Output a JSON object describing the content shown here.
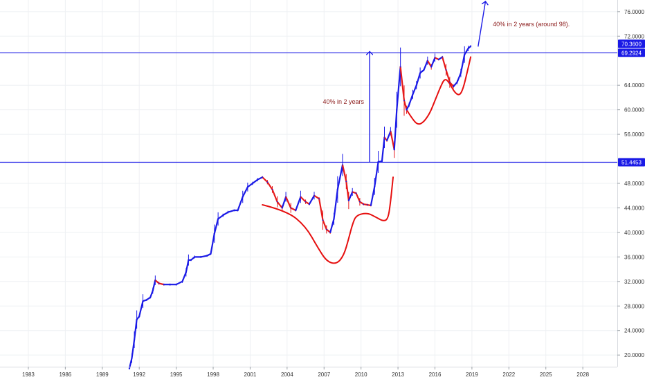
{
  "chart_data": {
    "type": "line",
    "title": "",
    "xlabel": "",
    "ylabel": "",
    "colors": {
      "up": "#1a1ae6",
      "down": "#e61a1a",
      "level": "#1a1ae6",
      "curve": "#e60f0f",
      "annotation_text": "#8b1a1a",
      "grid": "#eef0f3",
      "axis_text": "#333333",
      "badge_text": "#ffffff"
    },
    "xlim": [
      1980.7,
      2030.8
    ],
    "ylim": [
      18.1,
      77.9
    ],
    "x_ticks": [
      "1983",
      "1986",
      "1989",
      "1992",
      "1995",
      "1998",
      "2001",
      "2004",
      "2007",
      "2010",
      "2013",
      "2016",
      "2019",
      "2022",
      "2025",
      "2028"
    ],
    "y_ticks": [
      "20.0000",
      "24.0000",
      "28.0000",
      "32.0000",
      "36.0000",
      "40.0000",
      "44.0000",
      "48.0000",
      "56.0000",
      "60.0000",
      "64.0000",
      "72.0000",
      "76.0000"
    ],
    "price_series": {
      "name": "",
      "x": [
        1991.2,
        1991.4,
        1991.6,
        1991.8,
        1992.0,
        1992.3,
        1992.6,
        1992.9,
        1993.1,
        1993.3,
        1993.6,
        1994.0,
        1994.5,
        1995.0,
        1995.5,
        1995.8,
        1996.0,
        1996.2,
        1996.5,
        1997.0,
        1997.5,
        1997.8,
        1998.1,
        1998.4,
        1998.8,
        1999.2,
        1999.7,
        2000.0,
        2000.4,
        2000.8,
        2001.2,
        2001.6,
        2002.0,
        2002.4,
        2002.8,
        2003.2,
        2003.6,
        2003.9,
        2004.3,
        2004.7,
        2005.1,
        2005.5,
        2005.8,
        2006.2,
        2006.6,
        2006.9,
        2007.2,
        2007.5,
        2007.8,
        2008.1,
        2008.5,
        2008.8,
        2009.0,
        2009.3,
        2009.6,
        2009.9,
        2010.2,
        2010.5,
        2010.8,
        2011.1,
        2011.4,
        2011.7,
        2011.9,
        2012.1,
        2012.4,
        2012.7,
        2012.9,
        2013.2,
        2013.5,
        2013.7,
        2013.9,
        2014.2,
        2014.5,
        2014.8,
        2015.1,
        2015.4,
        2015.7,
        2016.0,
        2016.3,
        2016.6,
        2016.9,
        2017.2,
        2017.5,
        2017.8,
        2018.1,
        2018.4,
        2018.7,
        2018.9
      ],
      "values": [
        17.8,
        19.5,
        22.5,
        25.8,
        26.3,
        28.8,
        29.0,
        29.4,
        30.5,
        32.2,
        31.7,
        31.5,
        31.5,
        31.5,
        32.0,
        33.5,
        35.5,
        35.5,
        36.0,
        36.0,
        36.2,
        36.5,
        39.8,
        42.2,
        42.8,
        43.3,
        43.6,
        43.6,
        45.8,
        47.4,
        48.0,
        48.6,
        49.0,
        48.2,
        47.0,
        45.0,
        44.0,
        45.8,
        44.0,
        43.6,
        45.8,
        45.0,
        44.6,
        46.0,
        45.5,
        42.0,
        40.5,
        40.0,
        42.2,
        47.0,
        51.0,
        48.3,
        45.2,
        46.6,
        46.4,
        45.0,
        44.6,
        44.5,
        44.4,
        47.5,
        51.5,
        51.6,
        55.5,
        55.0,
        56.5,
        53.5,
        60.0,
        67.0,
        61.5,
        60.0,
        60.8,
        62.5,
        64.0,
        66.0,
        66.5,
        68.0,
        67.0,
        68.5,
        68.2,
        68.6,
        66.5,
        64.5,
        63.8,
        64.5,
        66.0,
        69.0,
        70.0,
        70.36
      ]
    },
    "levels": [
      {
        "name": "resistance-upper",
        "value": 69.2924,
        "label": "69.2924",
        "extra_label": "70.3600"
      },
      {
        "name": "resistance-lower",
        "value": 51.4453,
        "label": "51.4453"
      }
    ],
    "curves": [
      {
        "name": "cup-1",
        "x": [
          2002.0,
          2004.0,
          2005.5,
          2006.5,
          2007.2,
          2008.0,
          2008.6,
          2009.0,
          2009.3,
          2009.6,
          2010.5,
          2011.2,
          2011.8,
          2012.2,
          2012.4,
          2012.6
        ],
        "values": [
          44.5,
          43.5,
          41.0,
          37.5,
          35.3,
          34.8,
          36.2,
          39.0,
          41.3,
          42.8,
          43.2,
          42.5,
          41.8,
          42.2,
          45.0,
          49.0
        ]
      },
      {
        "name": "cup-2",
        "x": [
          2013.7,
          2014.1,
          2014.6,
          2015.1,
          2015.6,
          2016.0,
          2016.4,
          2016.8,
          2017.2,
          2017.6,
          2018.0,
          2018.3,
          2018.6,
          2018.9
        ],
        "values": [
          60.0,
          58.7,
          57.5,
          58.0,
          59.5,
          61.5,
          63.5,
          65.2,
          64.3,
          62.8,
          62.3,
          63.5,
          66.0,
          68.6
        ]
      }
    ],
    "arrows": [
      {
        "name": "arrow-2y-first",
        "x1": 2010.7,
        "y1": 51.4453,
        "x2": 2010.7,
        "y2": 69.5
      },
      {
        "name": "arrow-2y-second",
        "x1": 2019.5,
        "y1": 70.3,
        "x2": 2020.1,
        "y2": 79.0
      }
    ],
    "annotations": [
      {
        "text": "40% in 2 years",
        "x": 2006.9,
        "y": 61.0
      },
      {
        "text": "40% in 2 years (around 98).",
        "x": 2020.7,
        "y": 73.6
      }
    ]
  }
}
